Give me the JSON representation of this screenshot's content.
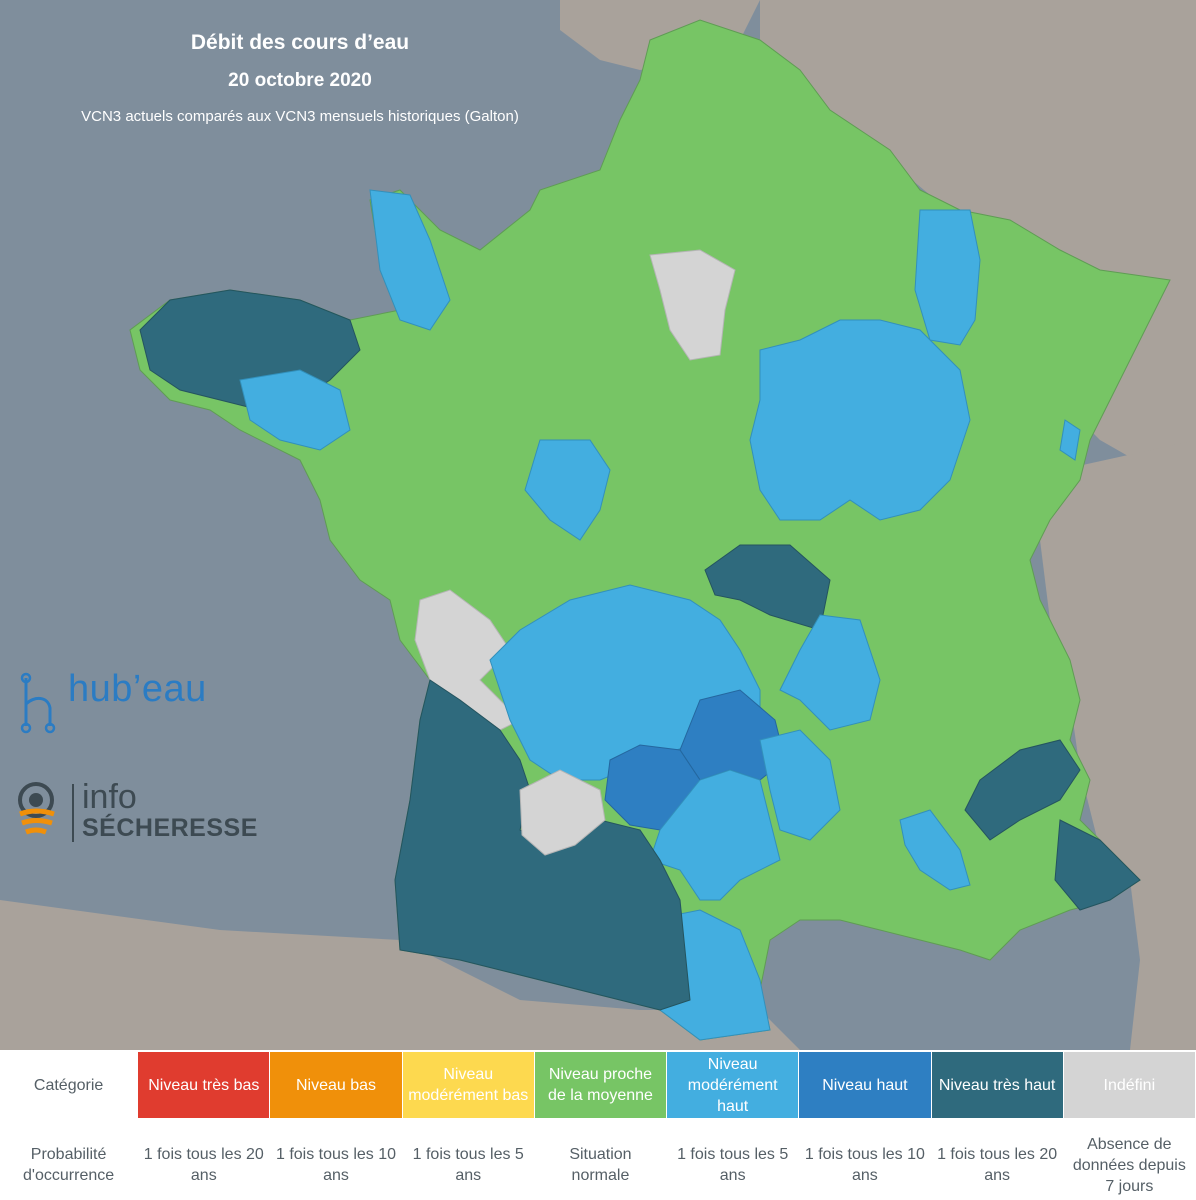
{
  "map": {
    "title": "Débit des cours d’eau",
    "date": "20 octobre 2020",
    "subtitle": "VCN3 actuels comparés aux VCN3 mensuels historiques (Galton)"
  },
  "colors": {
    "sea": "#7f8e9c",
    "land_neighbors": "#a9a29b",
    "tres_bas": "#e03c2f",
    "bas": "#f0900a",
    "moderement_bas": "#fdd94f",
    "proche_moyenne": "#77c565",
    "moderement_haut": "#43aee0",
    "haut": "#2e7fc2",
    "tres_haut": "#2f6a7d",
    "indefini": "#d4d4d4"
  },
  "logos": {
    "hubeau": "hub’eau",
    "hubeau_icon": "water-drop-network-icon",
    "info_top": "info",
    "info_bottom": "SÉCHERESSE",
    "info_icon": "drought-drop-icon"
  },
  "legend": {
    "header_category": "Catégorie",
    "header_probability": "Probabilité d'occurrence",
    "categories": [
      {
        "label": "Niveau très bas",
        "color_key": "tres_bas",
        "probability": "1 fois tous les 20 ans"
      },
      {
        "label": "Niveau bas",
        "color_key": "bas",
        "probability": "1 fois tous les 10 ans"
      },
      {
        "label": "Niveau modérément bas",
        "color_key": "moderement_bas",
        "probability": "1 fois tous les 5 ans"
      },
      {
        "label": "Niveau proche de la moyenne",
        "color_key": "proche_moyenne",
        "probability": "Situation normale"
      },
      {
        "label": "Niveau modérément haut",
        "color_key": "moderement_haut",
        "probability": "1 fois tous les 5 ans"
      },
      {
        "label": "Niveau haut",
        "color_key": "haut",
        "probability": "1 fois tous les 10 ans"
      },
      {
        "label": "Niveau très haut",
        "color_key": "tres_haut",
        "probability": "1 fois tous les 20 ans"
      },
      {
        "label": "Indéfini",
        "color_key": "indefini",
        "probability": "Absence de données depuis 7 jours"
      }
    ]
  }
}
